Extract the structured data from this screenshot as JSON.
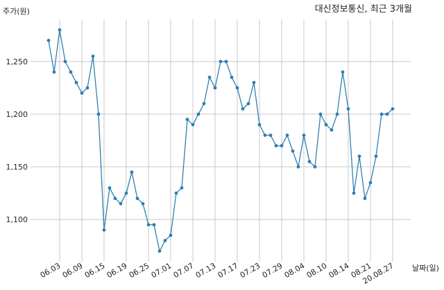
{
  "chart_data": {
    "type": "line",
    "title": "대신정보통신, 최근 3개월",
    "ylabel": "주가(원)",
    "xlabel": "날짜(일)",
    "ylim": [
      1060,
      1290
    ],
    "yticks": [
      1100,
      1150,
      1200,
      1250
    ],
    "ytick_labels": [
      "1,100",
      "1,150",
      "1,200",
      "1,250"
    ],
    "xtick_labels": [
      "06.03",
      "06.09",
      "06.15",
      "06.19",
      "06.25",
      "07.01",
      "07.07",
      "07.13",
      "07.17",
      "07.23",
      "07.29",
      "08.04",
      "08.10",
      "08.14",
      "08.21",
      "20.08.27"
    ],
    "xtick_indices": [
      3,
      7,
      11,
      15,
      19,
      23,
      27,
      31,
      35,
      39,
      43,
      47,
      51,
      55,
      59,
      63
    ],
    "grid": true,
    "line_color": "#2e7fb0",
    "series": [
      {
        "values": [
          1270,
          1240,
          1280,
          1250,
          1240,
          1230,
          1220,
          1225,
          1255,
          1200,
          1090,
          1130,
          1120,
          1115,
          1125,
          1145,
          1120,
          1115,
          1095,
          1095,
          1070,
          1080,
          1085,
          1125,
          1130,
          1195,
          1190,
          1200,
          1210,
          1235,
          1225,
          1250,
          1250,
          1235,
          1225,
          1205,
          1210,
          1230,
          1190,
          1180,
          1180,
          1170,
          1170,
          1180,
          1165,
          1150,
          1180,
          1155,
          1150,
          1200,
          1190,
          1185,
          1200,
          1240,
          1205,
          1125,
          1160,
          1120,
          1135,
          1160,
          1200,
          1200,
          1205
        ]
      }
    ]
  }
}
